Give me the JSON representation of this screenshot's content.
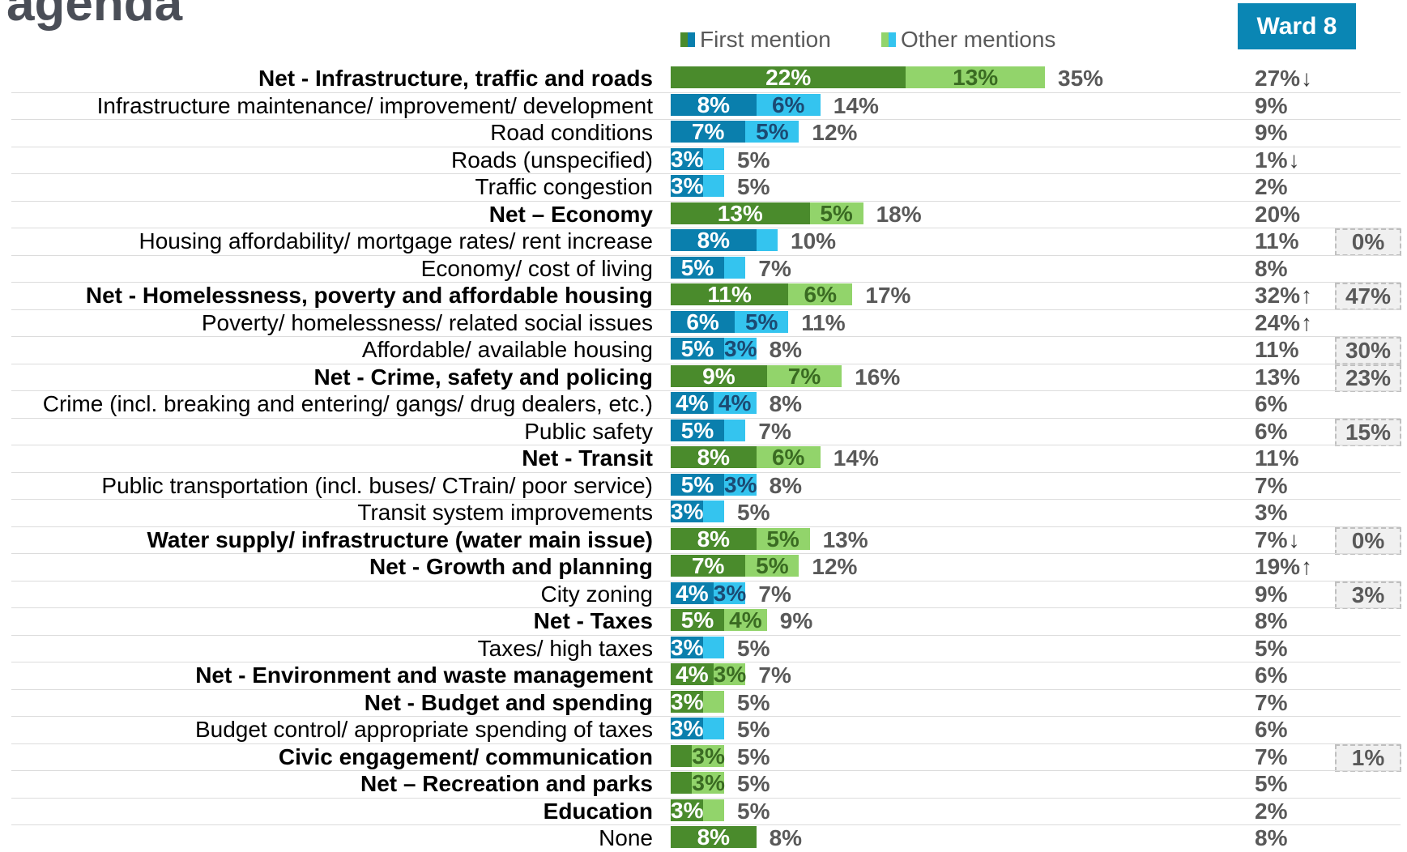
{
  "title": "agenda",
  "legend": [
    {
      "label": "First mention",
      "color_dark": "#4a8b2c",
      "color_light": "#0a7fad"
    },
    {
      "label": "Other mentions",
      "color_dark": "#92d46b",
      "color_light": "#34c4ef"
    }
  ],
  "ward_header": "Ward 8",
  "colors": {
    "net_first": "#4a8b2c",
    "net_other": "#92d46b",
    "sub_first": "#0a7fad",
    "sub_other": "#34c4ef",
    "ward_header_bg": "#0a86b4"
  },
  "chart_data": {
    "type": "bar",
    "orientation": "horizontal-stacked",
    "series": [
      {
        "name": "First mention"
      },
      {
        "name": "Other mentions"
      }
    ],
    "rows": [
      {
        "label": "Net - Infrastructure, traffic and roads",
        "bold": true,
        "first": 22,
        "other": 13,
        "first_label": "22%",
        "other_label": "13%",
        "total": "35%",
        "ward": "27%",
        "ward_arrow": "down",
        "box": ""
      },
      {
        "label": "Infrastructure maintenance/ improvement/ development",
        "bold": false,
        "first": 8,
        "other": 6,
        "first_label": "8%",
        "other_label": "6%",
        "total": "14%",
        "ward": "9%",
        "ward_arrow": "",
        "box": ""
      },
      {
        "label": "Road conditions",
        "bold": false,
        "first": 7,
        "other": 5,
        "first_label": "7%",
        "other_label": "5%",
        "total": "12%",
        "ward": "9%",
        "ward_arrow": "",
        "box": ""
      },
      {
        "label": "Roads (unspecified)",
        "bold": false,
        "first": 3,
        "other": 2,
        "first_label": "3%",
        "other_label": "",
        "total": "5%",
        "ward": "1%",
        "ward_arrow": "down",
        "box": ""
      },
      {
        "label": "Traffic congestion",
        "bold": false,
        "first": 3,
        "other": 2,
        "first_label": "3%",
        "other_label": "",
        "total": "5%",
        "ward": "2%",
        "ward_arrow": "",
        "box": ""
      },
      {
        "label": "Net – Economy",
        "bold": true,
        "first": 13,
        "other": 5,
        "first_label": "13%",
        "other_label": "5%",
        "total": "18%",
        "ward": "20%",
        "ward_arrow": "",
        "box": ""
      },
      {
        "label": "Housing affordability/ mortgage rates/ rent increase",
        "bold": false,
        "first": 8,
        "other": 2,
        "first_label": "8%",
        "other_label": "",
        "total": "10%",
        "ward": "11%",
        "ward_arrow": "",
        "box": "0%"
      },
      {
        "label": "Economy/ cost of living",
        "bold": false,
        "first": 5,
        "other": 2,
        "first_label": "5%",
        "other_label": "",
        "total": "7%",
        "ward": "8%",
        "ward_arrow": "",
        "box": ""
      },
      {
        "label": "Net - Homelessness, poverty and affordable housing",
        "bold": true,
        "first": 11,
        "other": 6,
        "first_label": "11%",
        "other_label": "6%",
        "total": "17%",
        "ward": "32%",
        "ward_arrow": "up",
        "box": "47%"
      },
      {
        "label": "Poverty/ homelessness/ related social issues",
        "bold": false,
        "first": 6,
        "other": 5,
        "first_label": "6%",
        "other_label": "5%",
        "total": "11%",
        "ward": "24%",
        "ward_arrow": "up",
        "box": ""
      },
      {
        "label": "Affordable/ available housing",
        "bold": false,
        "first": 5,
        "other": 3,
        "first_label": "5%",
        "other_label": "3%",
        "total": "8%",
        "ward": "11%",
        "ward_arrow": "",
        "box": "30%"
      },
      {
        "label": "Net - Crime, safety and policing",
        "bold": true,
        "first": 9,
        "other": 7,
        "first_label": "9%",
        "other_label": "7%",
        "total": "16%",
        "ward": "13%",
        "ward_arrow": "",
        "box": "23%"
      },
      {
        "label": "Crime (incl. breaking and entering/ gangs/ drug dealers, etc.)",
        "bold": false,
        "first": 4,
        "other": 4,
        "first_label": "4%",
        "other_label": "4%",
        "total": "8%",
        "ward": "6%",
        "ward_arrow": "",
        "box": ""
      },
      {
        "label": "Public safety",
        "bold": false,
        "first": 5,
        "other": 2,
        "first_label": "5%",
        "other_label": "",
        "total": "7%",
        "ward": "6%",
        "ward_arrow": "",
        "box": "15%"
      },
      {
        "label": "Net - Transit",
        "bold": true,
        "first": 8,
        "other": 6,
        "first_label": "8%",
        "other_label": "6%",
        "total": "14%",
        "ward": "11%",
        "ward_arrow": "",
        "box": ""
      },
      {
        "label": "Public transportation (incl. buses/ CTrain/ poor service)",
        "bold": false,
        "first": 5,
        "other": 3,
        "first_label": "5%",
        "other_label": "3%",
        "total": "8%",
        "ward": "7%",
        "ward_arrow": "",
        "box": ""
      },
      {
        "label": "Transit system improvements",
        "bold": false,
        "first": 3,
        "other": 2,
        "first_label": "3%",
        "other_label": "",
        "total": "5%",
        "ward": "3%",
        "ward_arrow": "",
        "box": ""
      },
      {
        "label": "Water supply/ infrastructure (water main issue)",
        "bold": true,
        "first": 8,
        "other": 5,
        "first_label": "8%",
        "other_label": "5%",
        "total": "13%",
        "ward": "7%",
        "ward_arrow": "down",
        "box": "0%"
      },
      {
        "label": "Net - Growth and planning",
        "bold": true,
        "first": 7,
        "other": 5,
        "first_label": "7%",
        "other_label": "5%",
        "total": "12%",
        "ward": "19%",
        "ward_arrow": "up",
        "box": ""
      },
      {
        "label": "City zoning",
        "bold": false,
        "first": 4,
        "other": 3,
        "first_label": "4%",
        "other_label": "3%",
        "total": "7%",
        "ward": "9%",
        "ward_arrow": "",
        "box": "3%"
      },
      {
        "label": "Net - Taxes",
        "bold": true,
        "first": 5,
        "other": 4,
        "first_label": "5%",
        "other_label": "4%",
        "total": "9%",
        "ward": "8%",
        "ward_arrow": "",
        "box": ""
      },
      {
        "label": "Taxes/ high taxes",
        "bold": false,
        "first": 3,
        "other": 2,
        "first_label": "3%",
        "other_label": "",
        "total": "5%",
        "ward": "5%",
        "ward_arrow": "",
        "box": ""
      },
      {
        "label": "Net - Environment and waste management",
        "bold": true,
        "first": 4,
        "other": 3,
        "first_label": "4%",
        "other_label": "3%",
        "total": "7%",
        "ward": "6%",
        "ward_arrow": "",
        "box": ""
      },
      {
        "label": "Net - Budget and spending",
        "bold": true,
        "first": 3,
        "other": 2,
        "first_label": "3%",
        "other_label": "",
        "total": "5%",
        "ward": "7%",
        "ward_arrow": "",
        "box": ""
      },
      {
        "label": "Budget control/ appropriate spending of taxes",
        "bold": false,
        "first": 3,
        "other": 2,
        "first_label": "3%",
        "other_label": "",
        "total": "5%",
        "ward": "6%",
        "ward_arrow": "",
        "box": ""
      },
      {
        "label": "Civic engagement/ communication",
        "bold": true,
        "first": 2,
        "other": 3,
        "first_label": "",
        "other_label": "3%",
        "total": "5%",
        "ward": "7%",
        "ward_arrow": "",
        "box": "1%"
      },
      {
        "label": "Net – Recreation and parks",
        "bold": true,
        "first": 2,
        "other": 3,
        "first_label": "",
        "other_label": "3%",
        "total": "5%",
        "ward": "5%",
        "ward_arrow": "",
        "box": ""
      },
      {
        "label": "Education",
        "bold": true,
        "first": 3,
        "other": 2,
        "first_label": "3%",
        "other_label": "",
        "total": "5%",
        "ward": "2%",
        "ward_arrow": "",
        "box": ""
      },
      {
        "label": "None",
        "bold": false,
        "is_none": true,
        "first": 8,
        "other": 0,
        "first_label": "8%",
        "other_label": "",
        "total": "8%",
        "ward": "8%",
        "ward_arrow": "",
        "box": ""
      }
    ]
  }
}
